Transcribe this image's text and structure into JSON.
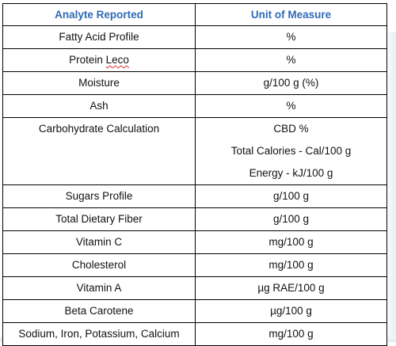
{
  "table": {
    "headers": {
      "analyte": "Analyte Reported",
      "unit": "Unit of Measure"
    },
    "rows": [
      {
        "analyte": "Fatty Acid Profile",
        "unit": "%"
      },
      {
        "analyte_prefix": "Protein ",
        "analyte_misspelled": "Leco",
        "unit": "%"
      },
      {
        "analyte": "Moisture",
        "unit": "g/100 g (%)"
      },
      {
        "analyte": "Ash",
        "unit": "%"
      },
      {
        "analyte": "Carbohydrate Calculation",
        "units": [
          "CBD %",
          "Total Calories - Cal/100 g",
          "Energy - kJ/100 g"
        ]
      },
      {
        "analyte": "Sugars Profile",
        "unit": "g/100 g"
      },
      {
        "analyte": "Total Dietary Fiber",
        "unit": "g/100 g"
      },
      {
        "analyte": "Vitamin C",
        "unit": "mg/100 g"
      },
      {
        "analyte": "Cholesterol",
        "unit": "mg/100 g"
      },
      {
        "analyte": "Vitamin A",
        "unit": "µg RAE/100 g"
      },
      {
        "analyte": "Beta Carotene",
        "unit": "µg/100 g"
      },
      {
        "analyte": "Sodium, Iron, Potassium, Calcium",
        "unit": "mg/100 g"
      }
    ]
  },
  "colors": {
    "header_text": "#2e6bb7",
    "border": "#000000",
    "body_text": "#111111"
  }
}
